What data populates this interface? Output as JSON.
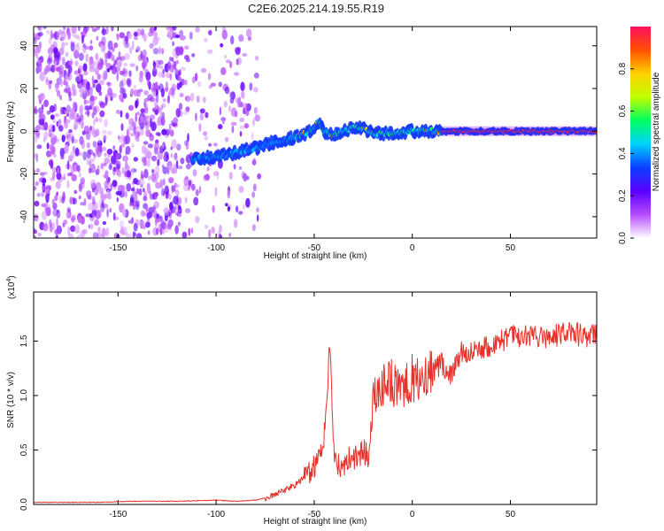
{
  "title": "C2E6.2025.214.19.55.R19",
  "chart_data": [
    {
      "type": "heatmap",
      "xlabel": "Height of straight line (km)",
      "ylabel": "Frequency (Hz)",
      "xlim": [
        -193,
        94
      ],
      "ylim": [
        -50,
        49
      ],
      "xticks": [
        -150,
        -100,
        -50,
        0,
        50
      ],
      "yticks": [
        -40,
        -20,
        0,
        20,
        40
      ],
      "colorbar": {
        "label": "Normalized spectral amplitude",
        "range": [
          0,
          1
        ],
        "ticks": [
          "0.0",
          "0.2",
          "0.4",
          "0.6",
          "0.8"
        ],
        "colors": [
          "#ffffff",
          "#b84cff",
          "#5a00ff",
          "#0a40ff",
          "#00d0ff",
          "#00ff60",
          "#c0ff00",
          "#ffd000",
          "#ff5000",
          "#ff1060"
        ]
      },
      "ridge": {
        "x": [
          -112,
          -100,
          -90,
          -80,
          -70,
          -60,
          -52,
          -48,
          -45,
          -40,
          -35,
          -30,
          -25,
          -20,
          -10,
          0,
          10,
          20,
          40,
          60,
          80,
          94
        ],
        "y": [
          -13,
          -12,
          -10,
          -8,
          -5,
          -3,
          0,
          4,
          0,
          -2,
          0,
          2,
          1,
          -1,
          -1,
          0,
          0,
          0,
          0,
          0,
          0,
          0
        ]
      },
      "noise_region_x": [
        -193,
        -78
      ]
    },
    {
      "type": "line",
      "xlabel": "Height of straight line (km)",
      "ylabel": "SNR (10 * v/v)",
      "multiplier": "(x10",
      "multiplier_exp": "4",
      "multiplier_close": ")",
      "xlim": [
        -193,
        94
      ],
      "ylim": [
        0,
        1.95
      ],
      "xticks": [
        -150,
        -100,
        -50,
        0,
        50
      ],
      "yticks": [
        "0.0",
        "0.5",
        "1.0",
        "1.5"
      ],
      "color": "#e8302a",
      "x": [
        -193,
        -180,
        -160,
        -140,
        -120,
        -100,
        -90,
        -80,
        -75,
        -70,
        -60,
        -55,
        -50,
        -45,
        -43,
        -42,
        -40,
        -35,
        -30,
        -25,
        -22,
        -20,
        -15,
        -10,
        -5,
        0,
        5,
        10,
        15,
        20,
        25,
        30,
        40,
        50,
        60,
        70,
        80,
        94
      ],
      "y": [
        0.02,
        0.02,
        0.02,
        0.03,
        0.03,
        0.04,
        0.03,
        0.04,
        0.06,
        0.09,
        0.18,
        0.25,
        0.36,
        0.6,
        1.2,
        1.5,
        0.5,
        0.35,
        0.45,
        0.5,
        0.5,
        1.0,
        1.1,
        1.15,
        1.05,
        1.2,
        1.1,
        1.25,
        1.3,
        1.2,
        1.4,
        1.42,
        1.48,
        1.55,
        1.55,
        1.55,
        1.58,
        1.55
      ]
    }
  ]
}
